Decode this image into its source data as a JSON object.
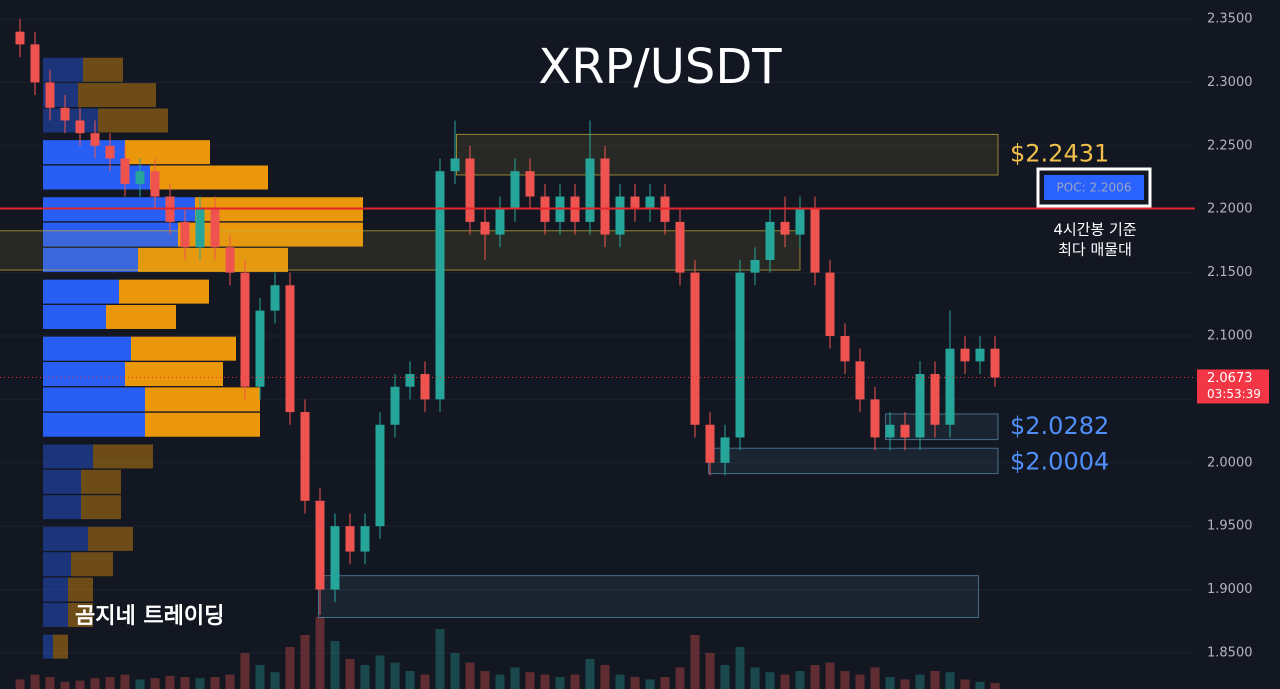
{
  "chart_data": {
    "type": "candlestick",
    "title": "XRP/USDT",
    "watermark": "곰지네 트레이딩",
    "up_color": "#26a69a",
    "down_color": "#ef5350",
    "open": [
      2.34,
      2.33,
      2.3,
      2.28,
      2.27,
      2.26,
      2.25,
      2.24,
      2.22,
      2.23,
      2.21,
      2.19,
      2.17,
      2.2,
      2.17,
      2.15,
      2.06,
      2.12,
      2.14,
      2.04,
      1.97,
      1.9,
      1.95,
      1.93,
      1.95,
      2.03,
      2.06,
      2.07,
      2.05,
      2.23,
      2.24,
      2.19,
      2.18,
      2.2,
      2.23,
      2.21,
      2.19,
      2.21,
      2.19,
      2.24,
      2.18,
      2.21,
      2.2,
      2.21,
      2.19,
      2.15,
      2.03,
      2.0,
      2.02,
      2.15,
      2.16,
      2.19,
      2.18,
      2.2,
      2.15,
      2.1,
      2.08,
      2.05,
      2.02,
      2.03,
      2.02,
      2.07,
      2.03,
      2.09,
      2.08,
      2.09
    ],
    "high": [
      2.35,
      2.34,
      2.31,
      2.29,
      2.28,
      2.27,
      2.26,
      2.25,
      2.24,
      2.24,
      2.22,
      2.2,
      2.21,
      2.21,
      2.18,
      2.16,
      2.13,
      2.15,
      2.15,
      2.05,
      1.98,
      1.96,
      1.96,
      1.96,
      2.04,
      2.07,
      2.08,
      2.08,
      2.24,
      2.27,
      2.25,
      2.2,
      2.21,
      2.24,
      2.24,
      2.22,
      2.22,
      2.22,
      2.27,
      2.25,
      2.22,
      2.22,
      2.22,
      2.22,
      2.2,
      2.16,
      2.04,
      2.03,
      2.16,
      2.17,
      2.2,
      2.21,
      2.21,
      2.21,
      2.16,
      2.11,
      2.09,
      2.06,
      2.04,
      2.04,
      2.08,
      2.08,
      2.12,
      2.1,
      2.1,
      2.1
    ],
    "low": [
      2.32,
      2.29,
      2.27,
      2.26,
      2.25,
      2.24,
      2.23,
      2.21,
      2.21,
      2.2,
      2.18,
      2.16,
      2.16,
      2.16,
      2.14,
      2.05,
      2.05,
      2.11,
      2.03,
      1.96,
      1.88,
      1.89,
      1.92,
      1.92,
      1.94,
      2.02,
      2.05,
      2.04,
      2.04,
      2.22,
      2.18,
      2.16,
      2.17,
      2.19,
      2.2,
      2.18,
      2.18,
      2.18,
      2.18,
      2.17,
      2.17,
      2.19,
      2.19,
      2.18,
      2.14,
      2.02,
      1.99,
      1.99,
      2.01,
      2.14,
      2.15,
      2.17,
      2.17,
      2.14,
      2.09,
      2.07,
      2.04,
      2.01,
      2.01,
      2.01,
      2.01,
      2.02,
      2.02,
      2.07,
      2.07,
      2.06
    ],
    "close": [
      2.33,
      2.3,
      2.28,
      2.27,
      2.26,
      2.25,
      2.24,
      2.22,
      2.23,
      2.21,
      2.19,
      2.17,
      2.2,
      2.17,
      2.15,
      2.06,
      2.12,
      2.14,
      2.04,
      1.97,
      1.9,
      1.95,
      1.93,
      1.95,
      2.03,
      2.06,
      2.07,
      2.05,
      2.23,
      2.24,
      2.19,
      2.18,
      2.2,
      2.23,
      2.21,
      2.19,
      2.21,
      2.19,
      2.24,
      2.18,
      2.21,
      2.2,
      2.21,
      2.19,
      2.15,
      2.03,
      2.0,
      2.02,
      2.15,
      2.16,
      2.19,
      2.18,
      2.2,
      2.15,
      2.1,
      2.08,
      2.05,
      2.02,
      2.03,
      2.02,
      2.07,
      2.03,
      2.09,
      2.08,
      2.09,
      2.0673
    ],
    "volume": [
      8,
      12,
      10,
      6,
      7,
      9,
      10,
      12,
      8,
      9,
      11,
      10,
      9,
      10,
      12,
      30,
      20,
      14,
      35,
      45,
      60,
      40,
      25,
      20,
      28,
      22,
      15,
      12,
      50,
      30,
      22,
      15,
      12,
      18,
      14,
      12,
      10,
      12,
      25,
      20,
      12,
      10,
      8,
      10,
      18,
      45,
      30,
      20,
      35,
      18,
      14,
      12,
      15,
      20,
      22,
      15,
      12,
      18,
      10,
      8,
      12,
      15,
      14,
      8,
      6,
      5
    ],
    "ylim": [
      1.8216,
      2.365
    ],
    "yticks": [
      {
        "value": 2.35,
        "label": "2.3500"
      },
      {
        "value": 2.3,
        "label": "2.3000"
      },
      {
        "value": 2.25,
        "label": "2.2500"
      },
      {
        "value": 2.2,
        "label": "2.2000"
      },
      {
        "value": 2.15,
        "label": "2.1500"
      },
      {
        "value": 2.1,
        "label": "2.1000"
      },
      {
        "value": 2.05,
        "label": "2.0500"
      },
      {
        "value": 2.0,
        "label": "2.0000"
      },
      {
        "value": 1.95,
        "label": "1.9500"
      },
      {
        "value": 1.9,
        "label": "1.9000"
      },
      {
        "value": 1.85,
        "label": "1.8500"
      }
    ],
    "volume_profile": {
      "prices": [
        2.31,
        2.29,
        2.27,
        2.245,
        2.225,
        2.2,
        2.18,
        2.16,
        2.135,
        2.115,
        2.09,
        2.07,
        2.05,
        2.03,
        2.005,
        1.985,
        1.965,
        1.94,
        1.92,
        1.9,
        1.88,
        1.855
      ],
      "buy": [
        40,
        35,
        55,
        82,
        107,
        152,
        135,
        95,
        76,
        63,
        88,
        82,
        102,
        102,
        50,
        38,
        38,
        45,
        28,
        25,
        25,
        10
      ],
      "sell": [
        40,
        78,
        70,
        85,
        118,
        168,
        185,
        150,
        90,
        70,
        105,
        98,
        115,
        115,
        60,
        40,
        40,
        45,
        42,
        25,
        25,
        15
      ],
      "buy_color": "#2962ff",
      "sell_color": "#f59e0b",
      "value_area_high": 2.25,
      "value_area_low": 2.02
    },
    "zones": [
      {
        "low": 2.227,
        "high": 2.259,
        "start": 29.1,
        "end": 65.2,
        "color": "#c9b037",
        "label": {
          "value": 2.2431,
          "label": "$2.2431"
        },
        "label_color": "#f0c04a"
      },
      {
        "low": 2.152,
        "high": 2.183,
        "start": -1.4,
        "end": 52,
        "color": "#c9b037"
      },
      {
        "low": 2.0183,
        "high": 2.0385,
        "start": 57.7,
        "end": 65.2,
        "color": "#5a8fb0",
        "label": {
          "value": 2.0282,
          "label": "$2.0282"
        },
        "label_color": "#4f8ff7"
      },
      {
        "low": 1.9915,
        "high": 2.0115,
        "start": 45.9,
        "end": 65.2,
        "color": "#5a8fb0",
        "label": {
          "value": 2.0004,
          "label": "$2.0004"
        },
        "label_color": "#4f8ff7"
      },
      {
        "low": 1.878,
        "high": 1.911,
        "start": 19.9,
        "end": 63.9,
        "color": "#5a8fb0"
      }
    ],
    "poc": {
      "value": 2.2006,
      "label": "POC: 2.2006"
    },
    "poc_note": [
      "4시간봉 기준",
      "최다 매물대"
    ],
    "last_price": 2.0673,
    "countdown": "03:53:39"
  }
}
